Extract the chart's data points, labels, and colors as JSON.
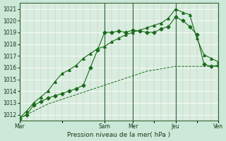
{
  "xlabel": "Pression niveau de la mer( hPa )",
  "bg_color": "#cce8d8",
  "plot_bg_color": "#d8ede0",
  "grid_color_h": "#ffffff",
  "grid_color_v": "#ffb0b0",
  "line_color": "#1a6b1a",
  "ylim": [
    1011.5,
    1021.5
  ],
  "yticks": [
    1012,
    1013,
    1014,
    1015,
    1016,
    1017,
    1018,
    1019,
    1020,
    1021
  ],
  "xtick_labels": [
    "Mar",
    "",
    "Sam",
    "Mer",
    "",
    "Jeu",
    "",
    "Ven"
  ],
  "xtick_positions": [
    0,
    6,
    12,
    16,
    19,
    22,
    25,
    28
  ],
  "vline_major": [
    0,
    12,
    16,
    22,
    28
  ],
  "vline_minor_color": "#cc8888",
  "total_x": 28,
  "line1_x": [
    0,
    1,
    2,
    3,
    4,
    5,
    6,
    7,
    8,
    9,
    10,
    11,
    12,
    13,
    14,
    15,
    16,
    17,
    18,
    19,
    20,
    21,
    22,
    23,
    24,
    25,
    26,
    27,
    28
  ],
  "line1_y": [
    1011.7,
    1012.0,
    1012.8,
    1013.1,
    1013.4,
    1013.6,
    1013.8,
    1014.0,
    1014.2,
    1014.5,
    1016.0,
    1017.5,
    1019.0,
    1019.0,
    1019.1,
    1019.0,
    1019.2,
    1019.1,
    1019.0,
    1019.0,
    1019.3,
    1019.5,
    1020.3,
    1020.0,
    1019.5,
    1018.8,
    1016.3,
    1016.1,
    1016.2
  ],
  "line2_x": [
    0,
    1,
    2,
    3,
    4,
    5,
    6,
    7,
    8,
    9,
    10,
    11,
    12,
    13,
    14,
    15,
    16,
    17,
    18,
    19,
    20,
    21,
    22,
    23,
    24,
    25,
    26,
    27,
    28
  ],
  "line2_y": [
    1011.7,
    1012.3,
    1013.0,
    1013.5,
    1014.0,
    1014.8,
    1015.5,
    1015.8,
    1016.2,
    1016.8,
    1017.2,
    1017.6,
    1017.8,
    1018.2,
    1018.5,
    1018.8,
    1019.0,
    1019.2,
    1019.4,
    1019.6,
    1019.8,
    1020.2,
    1021.0,
    1020.7,
    1020.5,
    1018.5,
    1017.1,
    1016.8,
    1016.5
  ],
  "line3_x": [
    0,
    1,
    2,
    3,
    4,
    5,
    6,
    7,
    8,
    9,
    10,
    11,
    12,
    13,
    14,
    15,
    16,
    17,
    18,
    19,
    20,
    21,
    22,
    23,
    24,
    25,
    26,
    27,
    28
  ],
  "line3_y": [
    1011.7,
    1012.0,
    1012.3,
    1012.6,
    1012.9,
    1013.1,
    1013.3,
    1013.5,
    1013.7,
    1013.9,
    1014.1,
    1014.3,
    1014.5,
    1014.7,
    1014.9,
    1015.1,
    1015.3,
    1015.5,
    1015.7,
    1015.8,
    1015.9,
    1016.0,
    1016.1,
    1016.1,
    1016.1,
    1016.1,
    1016.1,
    1016.1,
    1016.1
  ]
}
